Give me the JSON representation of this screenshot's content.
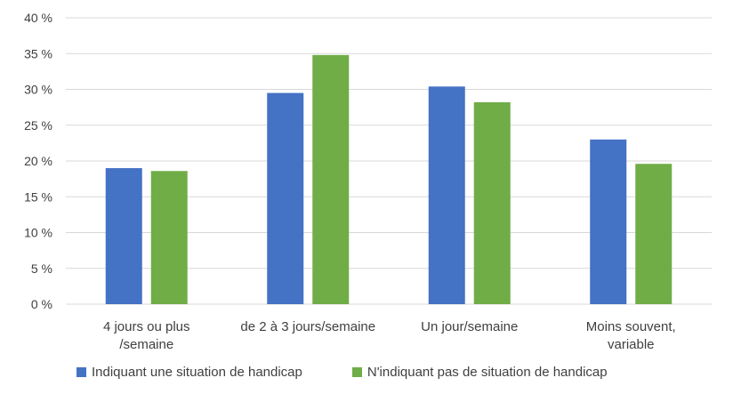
{
  "chart_data": {
    "type": "bar",
    "categories": [
      [
        "4 jours ou plus",
        "/semaine"
      ],
      [
        "de 2 à 3 jours/semaine"
      ],
      [
        "Un jour/semaine"
      ],
      [
        "Moins souvent,",
        "variable"
      ]
    ],
    "series": [
      {
        "name": "Indiquant une situation de handicap",
        "color": "#4472C4",
        "values": [
          19.0,
          29.5,
          30.4,
          23.0
        ]
      },
      {
        "name": "N'indiquant pas de situation de handicap",
        "color": "#70AD47",
        "values": [
          18.6,
          34.8,
          28.2,
          19.6
        ]
      }
    ],
    "ylim": [
      0,
      40
    ],
    "yticks": [
      0,
      5,
      10,
      15,
      20,
      25,
      30,
      35,
      40
    ],
    "ytick_labels": [
      "0 %",
      "5 %",
      "10 %",
      "15 %",
      "20 %",
      "25 %",
      "30 %",
      "35 %",
      "40 %"
    ],
    "grid": true,
    "legend": "bottom"
  }
}
